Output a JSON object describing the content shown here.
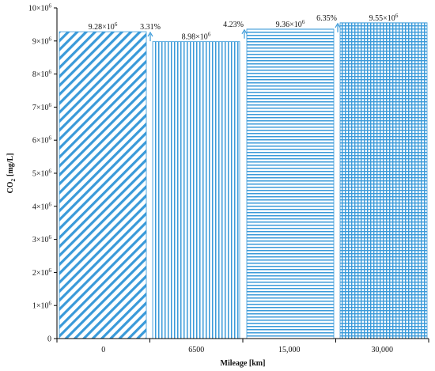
{
  "chart_data": {
    "type": "bar",
    "title": "",
    "xlabel": "Mileage [km]",
    "ylabel": "CO2 [mg/L]",
    "ylabel_parts": {
      "base": "CO",
      "sub": "2",
      "unit": "[mg/L]"
    },
    "categories": [
      "0",
      "6500",
      "15,000",
      "30,000"
    ],
    "values": [
      9280000,
      8980000,
      9360000,
      9550000
    ],
    "value_labels": [
      {
        "mantissa": "9.28×10",
        "exp": "6"
      },
      {
        "mantissa": "8.98×10",
        "exp": "6"
      },
      {
        "mantissa": "9.36×10",
        "exp": "6"
      },
      {
        "mantissa": "9.55×10",
        "exp": "6"
      }
    ],
    "change_labels": [
      "3.31%",
      "",
      "4.23%",
      "6.35%"
    ],
    "patterns": [
      "diagonal",
      "vertical",
      "horizontal",
      "grid"
    ],
    "ylim": [
      0,
      10000000
    ],
    "yticks": [
      {
        "value": 0,
        "mantissa": "0",
        "exp": ""
      },
      {
        "value": 1000000,
        "mantissa": "1×10",
        "exp": "6"
      },
      {
        "value": 2000000,
        "mantissa": "2×10",
        "exp": "6"
      },
      {
        "value": 3000000,
        "mantissa": "3×10",
        "exp": "6"
      },
      {
        "value": 4000000,
        "mantissa": "4×10",
        "exp": "6"
      },
      {
        "value": 5000000,
        "mantissa": "5×10",
        "exp": "6"
      },
      {
        "value": 6000000,
        "mantissa": "6×10",
        "exp": "6"
      },
      {
        "value": 7000000,
        "mantissa": "7×10",
        "exp": "6"
      },
      {
        "value": 8000000,
        "mantissa": "8×10",
        "exp": "6"
      },
      {
        "value": 9000000,
        "mantissa": "9×10",
        "exp": "6"
      },
      {
        "value": 10000000,
        "mantissa": "10×10",
        "exp": "6"
      }
    ],
    "grid": false,
    "legend": "none",
    "colors": {
      "bar": "#3a9ad9",
      "axis": "#000000",
      "arrow": "#3a9ad9"
    }
  }
}
